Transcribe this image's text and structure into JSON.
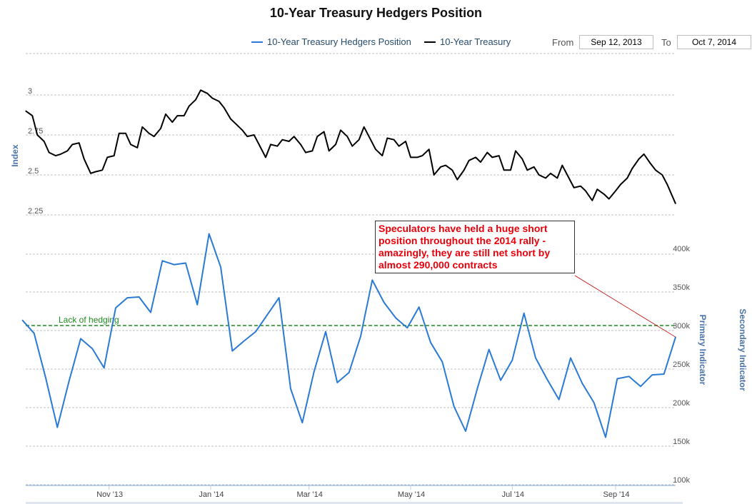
{
  "chart_data": {
    "type": "line",
    "title": "10-Year Treasury Hedgers Position",
    "range_selector": {
      "from_label": "From",
      "from_value": "Sep 12, 2013",
      "to_label": "To",
      "to_value": "Oct 7, 2014"
    },
    "x_ticks": [
      "Nov '13",
      "Jan '14",
      "Mar '14",
      "May '14",
      "Jul '14",
      "Sep '14"
    ],
    "x_range": [
      "2013-09-12",
      "2014-10-07"
    ],
    "panels": {
      "top": {
        "ylabel": "Index",
        "yticks": [
          "3",
          "2.75",
          "2.5",
          "2.25"
        ],
        "ylim": [
          2.25,
          3.25
        ],
        "series": [
          {
            "name": "10-Year Treasury",
            "color": "#000000",
            "points": [
              [
                "2013-09-12",
                2.9
              ],
              [
                "2013-09-16",
                2.87
              ],
              [
                "2013-09-19",
                2.75
              ],
              [
                "2013-09-23",
                2.71
              ],
              [
                "2013-09-26",
                2.64
              ],
              [
                "2013-09-30",
                2.62
              ],
              [
                "2013-10-03",
                2.63
              ],
              [
                "2013-10-07",
                2.65
              ],
              [
                "2013-10-10",
                2.69
              ],
              [
                "2013-10-14",
                2.7
              ],
              [
                "2013-10-17",
                2.6
              ],
              [
                "2013-10-21",
                2.51
              ],
              [
                "2013-10-24",
                2.52
              ],
              [
                "2013-10-28",
                2.53
              ],
              [
                "2013-10-31",
                2.61
              ],
              [
                "2013-11-04",
                2.62
              ],
              [
                "2013-11-07",
                2.76
              ],
              [
                "2013-11-11",
                2.76
              ],
              [
                "2013-11-14",
                2.69
              ],
              [
                "2013-11-18",
                2.67
              ],
              [
                "2013-11-21",
                2.8
              ],
              [
                "2013-11-25",
                2.76
              ],
              [
                "2013-11-28",
                2.74
              ],
              [
                "2013-12-02",
                2.79
              ],
              [
                "2013-12-05",
                2.88
              ],
              [
                "2013-12-09",
                2.83
              ],
              [
                "2013-12-12",
                2.87
              ],
              [
                "2013-12-16",
                2.87
              ],
              [
                "2013-12-19",
                2.93
              ],
              [
                "2013-12-23",
                2.97
              ],
              [
                "2013-12-26",
                3.03
              ],
              [
                "2013-12-30",
                3.01
              ],
              [
                "2014-01-02",
                2.98
              ],
              [
                "2014-01-06",
                2.96
              ],
              [
                "2014-01-09",
                2.92
              ],
              [
                "2014-01-13",
                2.85
              ],
              [
                "2014-01-16",
                2.82
              ],
              [
                "2014-01-20",
                2.78
              ],
              [
                "2014-01-23",
                2.74
              ],
              [
                "2014-01-27",
                2.75
              ],
              [
                "2014-01-30",
                2.69
              ],
              [
                "2014-02-03",
                2.61
              ],
              [
                "2014-02-06",
                2.69
              ],
              [
                "2014-02-10",
                2.68
              ],
              [
                "2014-02-13",
                2.72
              ],
              [
                "2014-02-17",
                2.71
              ],
              [
                "2014-02-20",
                2.74
              ],
              [
                "2014-02-24",
                2.69
              ],
              [
                "2014-02-27",
                2.64
              ],
              [
                "2014-03-03",
                2.65
              ],
              [
                "2014-03-06",
                2.74
              ],
              [
                "2014-03-10",
                2.77
              ],
              [
                "2014-03-13",
                2.65
              ],
              [
                "2014-03-17",
                2.69
              ],
              [
                "2014-03-20",
                2.78
              ],
              [
                "2014-03-24",
                2.74
              ],
              [
                "2014-03-27",
                2.68
              ],
              [
                "2014-03-31",
                2.72
              ],
              [
                "2014-04-03",
                2.8
              ],
              [
                "2014-04-07",
                2.72
              ],
              [
                "2014-04-10",
                2.66
              ],
              [
                "2014-04-14",
                2.62
              ],
              [
                "2014-04-17",
                2.73
              ],
              [
                "2014-04-21",
                2.72
              ],
              [
                "2014-04-24",
                2.68
              ],
              [
                "2014-04-28",
                2.71
              ],
              [
                "2014-05-01",
                2.61
              ],
              [
                "2014-05-05",
                2.61
              ],
              [
                "2014-05-08",
                2.62
              ],
              [
                "2014-05-12",
                2.66
              ],
              [
                "2014-05-15",
                2.5
              ],
              [
                "2014-05-19",
                2.55
              ],
              [
                "2014-05-22",
                2.56
              ],
              [
                "2014-05-26",
                2.53
              ],
              [
                "2014-05-29",
                2.47
              ],
              [
                "2014-06-02",
                2.53
              ],
              [
                "2014-06-05",
                2.59
              ],
              [
                "2014-06-09",
                2.61
              ],
              [
                "2014-06-12",
                2.58
              ],
              [
                "2014-06-16",
                2.64
              ],
              [
                "2014-06-19",
                2.61
              ],
              [
                "2014-06-23",
                2.62
              ],
              [
                "2014-06-26",
                2.53
              ],
              [
                "2014-06-30",
                2.53
              ],
              [
                "2014-07-03",
                2.65
              ],
              [
                "2014-07-07",
                2.6
              ],
              [
                "2014-07-10",
                2.53
              ],
              [
                "2014-07-14",
                2.55
              ],
              [
                "2014-07-17",
                2.5
              ],
              [
                "2014-07-21",
                2.48
              ],
              [
                "2014-07-24",
                2.51
              ],
              [
                "2014-07-28",
                2.48
              ],
              [
                "2014-07-31",
                2.56
              ],
              [
                "2014-08-04",
                2.48
              ],
              [
                "2014-08-07",
                2.42
              ],
              [
                "2014-08-11",
                2.43
              ],
              [
                "2014-08-14",
                2.4
              ],
              [
                "2014-08-18",
                2.34
              ],
              [
                "2014-08-21",
                2.41
              ],
              [
                "2014-08-25",
                2.38
              ],
              [
                "2014-08-28",
                2.35
              ],
              [
                "2014-09-01",
                2.4
              ],
              [
                "2014-09-04",
                2.44
              ],
              [
                "2014-09-08",
                2.48
              ],
              [
                "2014-09-11",
                2.54
              ],
              [
                "2014-09-15",
                2.6
              ],
              [
                "2014-09-18",
                2.63
              ],
              [
                "2014-09-22",
                2.57
              ],
              [
                "2014-09-25",
                2.53
              ],
              [
                "2014-09-29",
                2.5
              ],
              [
                "2014-10-02",
                2.44
              ],
              [
                "2014-10-07",
                2.32
              ]
            ]
          }
        ]
      },
      "bottom": {
        "ylabel": "Primary Indicator",
        "ylabel_secondary": "Secondary Indicator",
        "yticks": [
          "400k",
          "350k",
          "300k",
          "250k",
          "200k",
          "150k",
          "100k"
        ],
        "ylim": [
          100000,
          400000
        ],
        "series": [
          {
            "name": "10-Year Treasury Hedgers Position",
            "color": "#2a7ad4",
            "points": [
              [
                "2013-09-10",
                307000
              ],
              [
                "2013-09-17",
                290000
              ],
              [
                "2013-09-24",
                232000
              ],
              [
                "2013-10-01",
                168000
              ],
              [
                "2013-10-08",
                228000
              ],
              [
                "2013-10-15",
                283000
              ],
              [
                "2013-10-22",
                270000
              ],
              [
                "2013-10-29",
                245000
              ],
              [
                "2013-11-05",
                323000
              ],
              [
                "2013-11-12",
                336000
              ],
              [
                "2013-11-19",
                337000
              ],
              [
                "2013-11-26",
                317000
              ],
              [
                "2013-12-03",
                384000
              ],
              [
                "2013-12-10",
                379000
              ],
              [
                "2013-12-17",
                381000
              ],
              [
                "2013-12-24",
                327000
              ],
              [
                "2013-12-31",
                419000
              ],
              [
                "2014-01-07",
                376000
              ],
              [
                "2014-01-14",
                267000
              ],
              [
                "2014-01-21",
                280000
              ],
              [
                "2014-01-28",
                292000
              ],
              [
                "2014-02-04",
                314000
              ],
              [
                "2014-02-11",
                336000
              ],
              [
                "2014-02-18",
                218000
              ],
              [
                "2014-02-25",
                174000
              ],
              [
                "2014-03-04",
                240000
              ],
              [
                "2014-03-11",
                292000
              ],
              [
                "2014-03-18",
                226000
              ],
              [
                "2014-03-25",
                239000
              ],
              [
                "2014-04-01",
                286000
              ],
              [
                "2014-04-08",
                359000
              ],
              [
                "2014-04-15",
                330000
              ],
              [
                "2014-04-22",
                310000
              ],
              [
                "2014-04-29",
                297000
              ],
              [
                "2014-05-06",
                324000
              ],
              [
                "2014-05-13",
                278000
              ],
              [
                "2014-05-20",
                253000
              ],
              [
                "2014-05-27",
                195000
              ],
              [
                "2014-06-03",
                163000
              ],
              [
                "2014-06-10",
                218000
              ],
              [
                "2014-06-17",
                269000
              ],
              [
                "2014-06-24",
                229000
              ],
              [
                "2014-07-01",
                255000
              ],
              [
                "2014-07-08",
                316000
              ],
              [
                "2014-07-15",
                258000
              ],
              [
                "2014-07-22",
                230000
              ],
              [
                "2014-07-29",
                204000
              ],
              [
                "2014-08-05",
                258000
              ],
              [
                "2014-08-12",
                225000
              ],
              [
                "2014-08-19",
                200000
              ],
              [
                "2014-08-26",
                155000
              ],
              [
                "2014-09-02",
                231000
              ],
              [
                "2014-09-09",
                234000
              ],
              [
                "2014-09-16",
                221000
              ],
              [
                "2014-09-23",
                236000
              ],
              [
                "2014-09-30",
                237000
              ],
              [
                "2014-10-07",
                285000
              ]
            ]
          }
        ],
        "reference_line": {
          "label": "Lack of hedging",
          "value": 300000,
          "color": "#1e8a1e"
        },
        "annotation": {
          "text": "Speculators have held a huge short position throughout the 2014 rally - amazingly, they are still net short by almost 290,000 contracts",
          "color": "#e8000b",
          "points_to": [
            "2014-10-07",
            285000
          ]
        }
      }
    },
    "legend": [
      {
        "name": "10-Year Treasury Hedgers Position",
        "color": "#2a7ad4"
      },
      {
        "name": "10-Year Treasury",
        "color": "#000000"
      }
    ],
    "legend_placement": "top-right",
    "grid": true
  }
}
